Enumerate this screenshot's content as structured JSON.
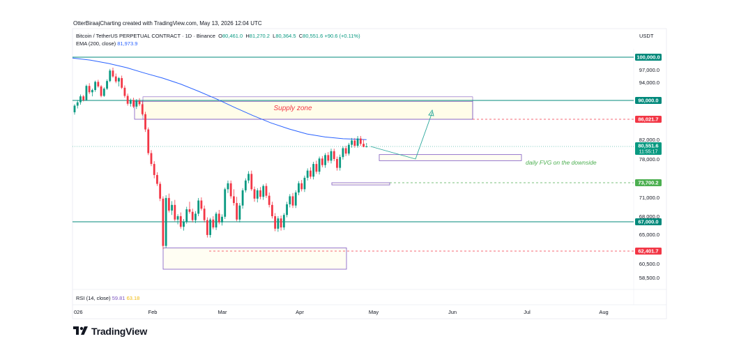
{
  "header": {
    "credit": "OtterBiraajCharting created with TradingView.com, May 13, 2026 12:04 UTC",
    "symbol": "Bitcoin / TetherUS PERPETUAL CONTRACT · 1D · Binance",
    "ohlc": {
      "o_label": "O",
      "o": "80,461.0",
      "h_label": "H",
      "h": "81,270.2",
      "l_label": "L",
      "l": "80,364.5",
      "c_label": "C",
      "c": "80,551.6",
      "change": "+90.6 (+0.11%)"
    },
    "ema_label": "EMA (200, close)",
    "ema_value": "81,973.9",
    "currency": "USDT"
  },
  "rsi": {
    "label": "RSI (14, close)",
    "value1": "59.81",
    "value2": "63.18"
  },
  "brand": {
    "name": "TradingView"
  },
  "colors": {
    "up": "#089981",
    "down": "#f23645",
    "ema": "#2962ff",
    "zone": "#7e57c2",
    "hline": "#00897b"
  },
  "chart_data": {
    "type": "candlestick",
    "x_axis": {
      "ticks": [
        "026",
        "Feb",
        "Mar",
        "Apr",
        "May",
        "Jun",
        "Jul",
        "Aug"
      ]
    },
    "y_axis": {
      "ticks": [
        "97,000.0",
        "94,000.0",
        "82,000.0",
        "78,000.0",
        "71,000.0",
        "68,000.0",
        "65,000.0",
        "60,500.0",
        "58,500.0"
      ]
    },
    "price_labels": [
      {
        "value": "100,000.0",
        "color": "#00897b"
      },
      {
        "value": "90,000.0",
        "color": "#00897b"
      },
      {
        "value": "86,021.7",
        "color": "#f23645"
      },
      {
        "value": "80,551.6",
        "color": "#089981",
        "sub": "11:55:17"
      },
      {
        "value": "73,700.2",
        "color": "#4caf50"
      },
      {
        "value": "67,000.0",
        "color": "#00897b"
      },
      {
        "value": "62,401.7",
        "color": "#f23645"
      }
    ],
    "horizontal_lines": [
      {
        "price": 100000,
        "style": "solid"
      },
      {
        "price": 90000,
        "style": "solid"
      },
      {
        "price": 67000,
        "style": "solid"
      },
      {
        "price": 86021.7,
        "style": "dashed"
      },
      {
        "price": 73700.2,
        "style": "dashed"
      },
      {
        "price": 62401.7,
        "style": "dashed"
      },
      {
        "price": 80551.6,
        "style": "dotted"
      }
    ],
    "annotations": {
      "supply": "Supply zone",
      "fvg": "daily FVG on the downside"
    },
    "candles": [
      [
        87500,
        89200,
        87000,
        88900
      ],
      [
        88900,
        90100,
        88300,
        89600
      ],
      [
        89600,
        91300,
        89100,
        90900
      ],
      [
        90900,
        91200,
        89800,
        90100
      ],
      [
        90100,
        93500,
        89900,
        93200
      ],
      [
        93200,
        93800,
        91400,
        91800
      ],
      [
        91800,
        92600,
        90900,
        92300
      ],
      [
        92300,
        94400,
        91900,
        94100
      ],
      [
        94100,
        94600,
        92800,
        93100
      ],
      [
        93100,
        93400,
        90700,
        91000
      ],
      [
        91000,
        92900,
        90800,
        92600
      ],
      [
        92600,
        94700,
        92300,
        94300
      ],
      [
        94300,
        97200,
        94000,
        96800
      ],
      [
        96800,
        97500,
        95100,
        95400
      ],
      [
        95400,
        96100,
        93800,
        94200
      ],
      [
        94200,
        95300,
        93100,
        95000
      ],
      [
        95000,
        95600,
        92500,
        92800
      ],
      [
        92800,
        93300,
        90600,
        91000
      ],
      [
        91000,
        91500,
        88900,
        89300
      ],
      [
        89300,
        90400,
        88700,
        90100
      ],
      [
        90100,
        90600,
        88400,
        88700
      ],
      [
        88700,
        90300,
        88200,
        89900
      ],
      [
        89900,
        90500,
        88800,
        89200
      ],
      [
        89200,
        89900,
        86800,
        87100
      ],
      [
        87100,
        87600,
        83500,
        84000
      ],
      [
        84000,
        84400,
        78800,
        79200
      ],
      [
        79200,
        79800,
        76700,
        77100
      ],
      [
        77100,
        77600,
        74500,
        75100
      ],
      [
        75100,
        75600,
        73100,
        73500
      ],
      [
        73500,
        73900,
        70400,
        70800
      ],
      [
        70800,
        71200,
        62700,
        63200
      ],
      [
        63200,
        71400,
        62900,
        70900
      ],
      [
        70900,
        71700,
        68600,
        68900
      ],
      [
        68900,
        70400,
        68200,
        69800
      ],
      [
        69800,
        70600,
        67100,
        67400
      ],
      [
        67400,
        68300,
        66600,
        68000
      ],
      [
        68000,
        68600,
        65900,
        66200
      ],
      [
        66200,
        67500,
        65600,
        67000
      ],
      [
        67000,
        69500,
        66700,
        69100
      ],
      [
        69100,
        70300,
        68400,
        68700
      ],
      [
        68700,
        69200,
        66900,
        67300
      ],
      [
        67300,
        68800,
        66800,
        68400
      ],
      [
        68400,
        70900,
        68000,
        70500
      ],
      [
        70500,
        71000,
        68900,
        69200
      ],
      [
        69200,
        69700,
        66900,
        67300
      ],
      [
        67300,
        67800,
        64500,
        64900
      ],
      [
        64900,
        67700,
        64500,
        67400
      ],
      [
        67400,
        68000,
        65800,
        66100
      ],
      [
        66100,
        68700,
        65700,
        68400
      ],
      [
        68400,
        69000,
        66600,
        66900
      ],
      [
        66900,
        68300,
        66400,
        67900
      ],
      [
        67900,
        72800,
        67500,
        72500
      ],
      [
        72500,
        74100,
        71800,
        73600
      ],
      [
        73600,
        74100,
        70800,
        71200
      ],
      [
        71200,
        72500,
        69700,
        70100
      ],
      [
        70100,
        71100,
        67100,
        67400
      ],
      [
        67400,
        70100,
        66900,
        69700
      ],
      [
        69700,
        72700,
        69200,
        72300
      ],
      [
        72300,
        74500,
        71900,
        74100
      ],
      [
        74100,
        75800,
        73600,
        75300
      ],
      [
        75300,
        75900,
        72200,
        72500
      ],
      [
        72500,
        73000,
        70300,
        70800
      ],
      [
        70800,
        72700,
        70200,
        72300
      ],
      [
        72300,
        72900,
        70700,
        71100
      ],
      [
        71100,
        73400,
        70600,
        73100
      ],
      [
        73100,
        73600,
        70900,
        71300
      ],
      [
        71300,
        71900,
        69400,
        69800
      ],
      [
        69800,
        70300,
        67600,
        68000
      ],
      [
        68000,
        68500,
        65500,
        65900
      ],
      [
        65900,
        68000,
        65400,
        67600
      ],
      [
        67600,
        68100,
        65600,
        66100
      ],
      [
        66100,
        68500,
        65700,
        68200
      ],
      [
        68200,
        70300,
        67800,
        69900
      ],
      [
        69900,
        71600,
        69400,
        71200
      ],
      [
        71200,
        71800,
        69300,
        69700
      ],
      [
        69700,
        72300,
        69300,
        71900
      ],
      [
        71900,
        74000,
        71400,
        73600
      ],
      [
        73600,
        74200,
        72100,
        72500
      ],
      [
        72500,
        75000,
        72000,
        74600
      ],
      [
        74600,
        76300,
        74100,
        75900
      ],
      [
        75900,
        76500,
        74400,
        74800
      ],
      [
        74800,
        77500,
        74300,
        77100
      ],
      [
        77100,
        77700,
        75300,
        75700
      ],
      [
        75700,
        78500,
        75200,
        78100
      ],
      [
        78100,
        78600,
        76500,
        76900
      ],
      [
        76900,
        79200,
        76400,
        78800
      ],
      [
        78800,
        79400,
        77300,
        77700
      ],
      [
        77700,
        80100,
        77200,
        79600
      ],
      [
        79600,
        80100,
        77600,
        78000
      ],
      [
        78000,
        78500,
        75900,
        76400
      ],
      [
        76400,
        78900,
        75900,
        78400
      ],
      [
        78400,
        80600,
        77900,
        80200
      ],
      [
        80200,
        80700,
        78600,
        79100
      ],
      [
        79100,
        81300,
        78700,
        80900
      ],
      [
        80900,
        82300,
        80300,
        81800
      ],
      [
        81800,
        82300,
        80300,
        80700
      ],
      [
        80700,
        82700,
        80300,
        82200
      ],
      [
        82200,
        82700,
        80700,
        81100
      ],
      [
        81100,
        82000,
        80400,
        80461
      ],
      [
        80461,
        81270.2,
        80364.5,
        80551.6
      ]
    ],
    "ema_200": [
      [
        0,
        99800
      ],
      [
        10,
        99300
      ],
      [
        20,
        98500
      ],
      [
        30,
        97500
      ],
      [
        40,
        96200
      ],
      [
        50,
        95000
      ],
      [
        60,
        93600
      ],
      [
        70,
        92000
      ],
      [
        80,
        90300
      ],
      [
        90,
        88500
      ],
      [
        100,
        86800
      ],
      [
        110,
        85300
      ],
      [
        120,
        84100
      ],
      [
        130,
        83100
      ],
      [
        140,
        82500
      ],
      [
        150,
        82150
      ],
      [
        163,
        81973.9
      ]
    ],
    "zones": [
      {
        "name": "Supply zone",
        "from": 89800,
        "to": 86021.7
      },
      {
        "name": "daily FVG on the downside",
        "from": 78900,
        "to": 77700
      },
      {
        "name": "lower box",
        "from": 62900,
        "to": 59700
      },
      {
        "name": "small box",
        "from": 73700.2,
        "to": 73300
      }
    ],
    "projection": [
      [
        80551.6
      ],
      [
        78000
      ],
      [
        87500
      ]
    ]
  }
}
